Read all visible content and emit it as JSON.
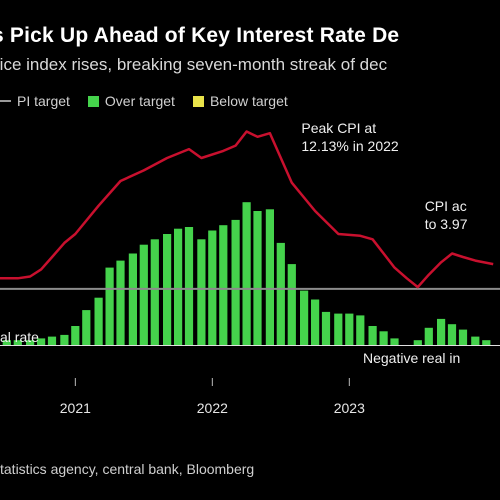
{
  "title": "s Pick Up Ahead of Key Interest Rate De",
  "subtitle": "rice index rises, breaking seven-month streak of dec",
  "legend": [
    {
      "label": "PI target",
      "color": "#9a9a9a"
    },
    {
      "label": "Over target",
      "color": "#45d34c"
    },
    {
      "label": "Below target",
      "color": "#e9e34a"
    }
  ],
  "source": "tatistics agency, central bank, Bloomberg",
  "colors": {
    "cpi_line": "#c8102e",
    "bars": "#45d34c",
    "target_line": "#8c8c8c",
    "baseline": "#e0e0e0"
  },
  "chart_data": {
    "type": "bar",
    "x_ticks": [
      "2021",
      "2022",
      "2023"
    ],
    "xlim": [
      2020.45,
      2024.1
    ],
    "ylim": [
      -1.5,
      13.2
    ],
    "series": [
      {
        "kind": "bar",
        "x": [
          2020.5,
          2020.58,
          2020.67,
          2020.75,
          2020.83,
          2020.92,
          2021.0,
          2021.08,
          2021.17,
          2021.25,
          2021.33,
          2021.42,
          2021.5,
          2021.58,
          2021.67,
          2021.75,
          2021.83,
          2021.92,
          2022.0,
          2022.08,
          2022.17,
          2022.25,
          2022.33,
          2022.42,
          2022.5,
          2022.58,
          2022.67,
          2022.75,
          2022.83,
          2022.92,
          2023.0,
          2023.08,
          2023.17,
          2023.25,
          2023.33,
          2023.42,
          2023.5,
          2023.58,
          2023.67,
          2023.75,
          2023.83,
          2023.92,
          2024.0
        ],
        "values": [
          0.3,
          0.3,
          0.3,
          0.4,
          0.5,
          0.6,
          1.1,
          2.0,
          2.7,
          4.4,
          4.8,
          5.2,
          5.7,
          6.0,
          6.3,
          6.6,
          6.7,
          6.0,
          6.5,
          6.8,
          7.1,
          8.1,
          7.6,
          7.7,
          5.8,
          4.6,
          3.1,
          2.6,
          1.9,
          1.8,
          1.8,
          1.7,
          1.1,
          0.8,
          0.4,
          0.0,
          0.3,
          1.0,
          1.5,
          1.2,
          0.9,
          0.5,
          0.3
        ]
      },
      {
        "kind": "line",
        "name": "CPI",
        "x": [
          2020.45,
          2020.58,
          2020.67,
          2020.75,
          2020.83,
          2020.92,
          2021.0,
          2021.17,
          2021.33,
          2021.5,
          2021.67,
          2021.83,
          2021.92,
          2022.08,
          2022.17,
          2022.25,
          2022.33,
          2022.42,
          2022.58,
          2022.75,
          2022.92,
          2023.08,
          2023.17,
          2023.25,
          2023.33,
          2023.42,
          2023.5,
          2023.58,
          2023.67,
          2023.75,
          2023.83,
          2023.92,
          2024.05
        ],
        "values": [
          3.8,
          3.8,
          3.9,
          4.3,
          5.0,
          5.8,
          6.3,
          7.9,
          9.3,
          9.9,
          10.6,
          11.1,
          10.6,
          11.0,
          11.3,
          12.1,
          11.8,
          12.0,
          9.2,
          7.6,
          6.3,
          6.2,
          6.0,
          5.2,
          4.4,
          3.8,
          3.3,
          4.0,
          4.7,
          5.2,
          5.0,
          4.8,
          4.6
        ]
      },
      {
        "kind": "line",
        "name": "CPI target",
        "x": [
          2020.45,
          2024.1
        ],
        "values": [
          3.2,
          3.2
        ]
      }
    ],
    "annotations": [
      {
        "lines": [
          "Peak CPI at",
          "12.13% in 2022"
        ],
        "x": 2022.65,
        "y": 12.0
      },
      {
        "lines": [
          "CPI ac",
          "to 3.97"
        ],
        "x": 2023.55,
        "y": 7.6
      },
      {
        "lines": [
          "Negative real in"
        ],
        "x": 2023.1,
        "y": -1.0
      },
      {
        "lines": [
          "al rate"
        ],
        "x": 2020.45,
        "y": 0.2
      }
    ],
    "grid": false
  }
}
